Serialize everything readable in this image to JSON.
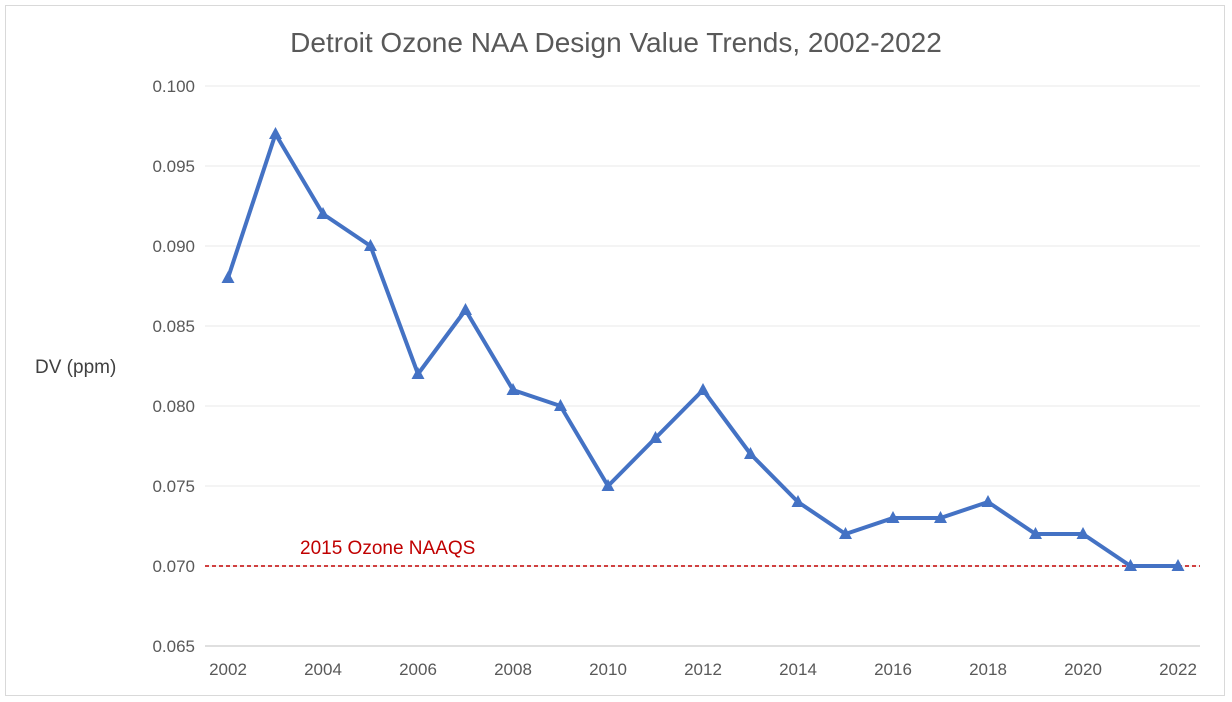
{
  "chart_data": {
    "type": "line",
    "title": "Detroit Ozone NAA Design Value Trends, 2002-2022",
    "xlabel": "",
    "ylabel": "DV (ppm)",
    "ylim": [
      0.065,
      0.1
    ],
    "yticks": [
      "0.065",
      "0.070",
      "0.075",
      "0.080",
      "0.085",
      "0.090",
      "0.095",
      "0.100"
    ],
    "xticks": [
      "2002",
      "2004",
      "2006",
      "2008",
      "2010",
      "2012",
      "2014",
      "2016",
      "2018",
      "2020",
      "2022"
    ],
    "grid": true,
    "x": [
      2002,
      2003,
      2004,
      2005,
      2006,
      2007,
      2008,
      2009,
      2010,
      2011,
      2012,
      2013,
      2014,
      2015,
      2016,
      2017,
      2018,
      2019,
      2020,
      2021,
      2022
    ],
    "series": [
      {
        "values": [
          0.088,
          0.097,
          0.092,
          0.09,
          0.082,
          0.086,
          0.081,
          0.08,
          0.075,
          0.078,
          0.081,
          0.077,
          0.074,
          0.072,
          0.073,
          0.073,
          0.074,
          0.072,
          0.072,
          0.07,
          0.07
        ],
        "color": "#4472C4",
        "marker": "triangle"
      }
    ],
    "reference_line": {
      "value": 0.07,
      "label": "2015 Ozone NAAQS",
      "color": "#C00000",
      "style": "dashed"
    }
  }
}
